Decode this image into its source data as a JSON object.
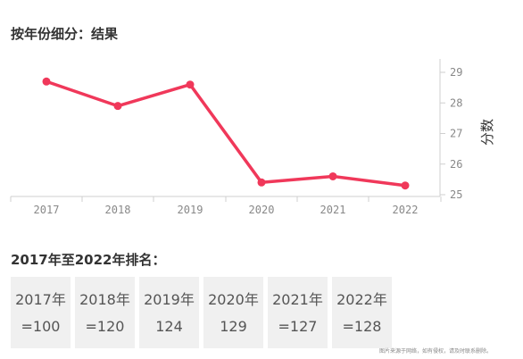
{
  "title": "按年份细分：结果",
  "rank_title": "2017年至2022年排名：",
  "chart_data": {
    "type": "line",
    "x": [
      "2017",
      "2018",
      "2019",
      "2020",
      "2021",
      "2022"
    ],
    "series": [
      {
        "values": [
          28.7,
          27.9,
          28.6,
          25.4,
          25.6,
          25.3
        ]
      }
    ],
    "ylabel": "分数",
    "ylim": [
      25,
      29
    ],
    "yticks": [
      "25",
      "26",
      "27",
      "28",
      "29"
    ],
    "y_axis_side": "right",
    "grid": false,
    "color": "#f0385a"
  },
  "rankings": [
    {
      "year": "2017年",
      "rank": "=100"
    },
    {
      "year": "2018年",
      "rank": "=120"
    },
    {
      "year": "2019年",
      "rank": "124"
    },
    {
      "year": "2020年",
      "rank": "129"
    },
    {
      "year": "2021年",
      "rank": "=127"
    },
    {
      "year": "2022年",
      "rank": "=128"
    }
  ],
  "watermark": "图片来源于网络，如有侵权，请及时联系删除。"
}
